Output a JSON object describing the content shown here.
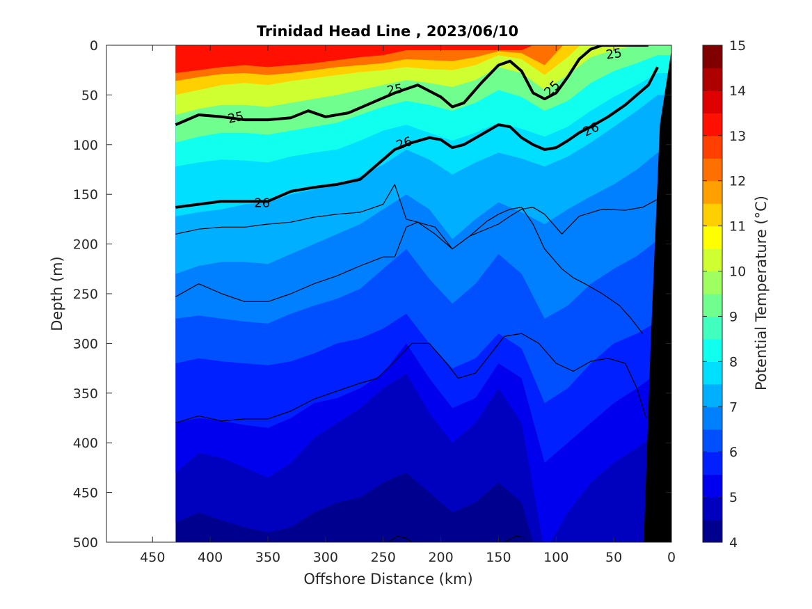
{
  "chart_data": {
    "type": "heatmap",
    "title": "Trinidad Head Line , 2023/06/10",
    "xlabel": "Offshore Distance (km)",
    "ylabel": "Depth (m)",
    "colorbar_label": "Potential Temperature (°C)",
    "xlim": [
      490,
      0
    ],
    "ylim": [
      500,
      0
    ],
    "xticks": [
      450,
      400,
      350,
      300,
      250,
      200,
      150,
      100,
      50,
      0
    ],
    "yticks": [
      0,
      50,
      100,
      150,
      200,
      250,
      300,
      350,
      400,
      450,
      500
    ],
    "colorbar_range": [
      4,
      15
    ],
    "colorbar_ticks": [
      4,
      5,
      6,
      7,
      8,
      9,
      10,
      11,
      12,
      13,
      14,
      15
    ],
    "colormap": [
      "#00008f",
      "#0000bf",
      "#0000ef",
      "#0020ff",
      "#0050ff",
      "#0080ff",
      "#00afff",
      "#00dfff",
      "#10ffef",
      "#40ffbf",
      "#70ff8f",
      "#9fff60",
      "#cfff30",
      "#ffff00",
      "#ffcf00",
      "#ff9f00",
      "#ff7000",
      "#ff4000",
      "#ff1000",
      "#df0000",
      "#af0000",
      "#800000"
    ],
    "section_start_km": 430,
    "distance_km": [
      430,
      410,
      390,
      370,
      350,
      330,
      310,
      290,
      270,
      250,
      230,
      210,
      190,
      170,
      150,
      130,
      110,
      90,
      70,
      50,
      30,
      12
    ],
    "isotherm_depths_m": [
      {
        "temp_c": 14,
        "depth_m": [
          -10,
          -10,
          -10,
          -10,
          -10,
          -10,
          -10,
          -10,
          -10,
          -10,
          -10,
          -10,
          -10,
          -10,
          -10,
          -10,
          -10,
          -10,
          -10,
          -10,
          -10,
          -10
        ]
      },
      {
        "temp_c": 13,
        "depth_m": [
          28,
          25,
          22,
          20,
          22,
          20,
          18,
          15,
          12,
          10,
          5,
          5,
          5,
          5,
          5,
          5,
          -5,
          -10,
          -10,
          -10,
          -10,
          -10
        ]
      },
      {
        "temp_c": 12,
        "depth_m": [
          36,
          32,
          29,
          28,
          30,
          28,
          25,
          22,
          20,
          18,
          14,
          15,
          16,
          12,
          6,
          8,
          20,
          -5,
          -10,
          -10,
          -10,
          -10
        ]
      },
      {
        "temp_c": 11,
        "depth_m": [
          50,
          45,
          40,
          38,
          40,
          36,
          33,
          30,
          27,
          25,
          22,
          24,
          25,
          20,
          10,
          14,
          30,
          12,
          -10,
          -10,
          -10,
          -10
        ]
      },
      {
        "temp_c": 10,
        "depth_m": [
          70,
          64,
          60,
          60,
          62,
          58,
          54,
          50,
          45,
          40,
          35,
          38,
          42,
          35,
          22,
          28,
          45,
          30,
          12,
          5,
          0,
          -5
        ]
      },
      {
        "temp_c": 9,
        "depth_m": [
          98,
          92,
          88,
          88,
          90,
          86,
          82,
          78,
          70,
          62,
          56,
          60,
          66,
          58,
          45,
          52,
          66,
          56,
          38,
          26,
          18,
          10
        ]
      },
      {
        "temp_c": 8,
        "depth_m": [
          122,
          118,
          115,
          116,
          118,
          112,
          108,
          105,
          96,
          86,
          80,
          88,
          96,
          88,
          78,
          84,
          92,
          82,
          66,
          52,
          40,
          28
        ]
      },
      {
        "temp_c": 7.5,
        "depth_m": [
          172,
          168,
          165,
          160,
          158,
          150,
          145,
          140,
          132,
          120,
          105,
          115,
          130,
          118,
          108,
          114,
          122,
          112,
          98,
          82,
          66,
          50
        ]
      },
      {
        "temp_c": 7,
        "depth_m": [
          230,
          222,
          218,
          218,
          220,
          210,
          200,
          190,
          180,
          165,
          150,
          165,
          195,
          175,
          158,
          168,
          180,
          165,
          152,
          140,
          125,
          108
        ]
      },
      {
        "temp_c": 6.5,
        "depth_m": [
          275,
          272,
          275,
          278,
          280,
          270,
          262,
          255,
          245,
          225,
          205,
          235,
          260,
          240,
          210,
          230,
          275,
          262,
          240,
          225,
          212,
          196
        ]
      },
      {
        "temp_c": 6,
        "depth_m": [
          320,
          315,
          318,
          320,
          322,
          318,
          310,
          300,
          295,
          285,
          270,
          300,
          325,
          315,
          290,
          305,
          360,
          345,
          320,
          300,
          290,
          278
        ]
      },
      {
        "temp_c": 5.5,
        "depth_m": [
          380,
          375,
          378,
          382,
          385,
          375,
          360,
          355,
          345,
          330,
          300,
          335,
          365,
          355,
          320,
          335,
          420,
          400,
          380,
          360,
          345,
          330
        ]
      },
      {
        "temp_c": 5,
        "depth_m": [
          430,
          410,
          415,
          425,
          435,
          420,
          395,
          380,
          365,
          345,
          330,
          370,
          400,
          380,
          345,
          380,
          510,
          470,
          440,
          420,
          405,
          390
        ]
      },
      {
        "temp_c": 4.5,
        "depth_m": [
          480,
          470,
          478,
          485,
          490,
          485,
          470,
          460,
          455,
          440,
          430,
          450,
          470,
          460,
          440,
          460,
          540,
          540,
          530,
          520,
          510,
          505
        ]
      }
    ],
    "density_contours": [
      {
        "label": "25",
        "thick": true,
        "distance_km": [
          430,
          410,
          390,
          370,
          350,
          330,
          315,
          300,
          280,
          260,
          240,
          220,
          200,
          190,
          180,
          165,
          150,
          140,
          130,
          120,
          110,
          100,
          90,
          80,
          70,
          60,
          50,
          40,
          20
        ],
        "depth_m": [
          80,
          70,
          72,
          75,
          75,
          73,
          66,
          72,
          68,
          58,
          48,
          40,
          52,
          62,
          58,
          38,
          20,
          16,
          26,
          48,
          54,
          48,
          32,
          14,
          4,
          0,
          0,
          0,
          0
        ]
      },
      {
        "label": "26",
        "thick": true,
        "distance_km": [
          430,
          410,
          390,
          370,
          350,
          330,
          310,
          290,
          270,
          260,
          250,
          240,
          225,
          210,
          200,
          190,
          180,
          165,
          150,
          140,
          130,
          120,
          110,
          100,
          90,
          80,
          70,
          55,
          40,
          30,
          20,
          12
        ],
        "depth_m": [
          163,
          160,
          157,
          157,
          157,
          147,
          143,
          140,
          135,
          125,
          115,
          105,
          98,
          93,
          95,
          103,
          100,
          90,
          80,
          82,
          93,
          100,
          105,
          103,
          96,
          88,
          82,
          72,
          60,
          50,
          40,
          22
        ]
      },
      {
        "label": "",
        "thick": false,
        "distance_km": [
          430,
          410,
          390,
          370,
          350,
          330,
          310,
          290,
          270,
          250,
          240,
          230,
          220,
          205,
          190,
          175,
          150,
          140,
          130,
          120,
          110,
          95,
          80,
          60,
          40,
          25,
          12
        ],
        "depth_m": [
          190,
          185,
          183,
          183,
          180,
          178,
          173,
          170,
          168,
          160,
          140,
          175,
          178,
          183,
          205,
          192,
          180,
          172,
          165,
          163,
          170,
          190,
          172,
          165,
          166,
          163,
          155
        ]
      },
      {
        "label": "",
        "thick": false,
        "distance_km": [
          430,
          410,
          390,
          370,
          350,
          330,
          310,
          290,
          270,
          250,
          240,
          230,
          220,
          205,
          190,
          175,
          160,
          150,
          140,
          130,
          120,
          110,
          95,
          85,
          75,
          60,
          45,
          35,
          25
        ],
        "depth_m": [
          253,
          240,
          250,
          258,
          258,
          250,
          240,
          232,
          222,
          213,
          213,
          183,
          178,
          190,
          205,
          192,
          177,
          170,
          165,
          163,
          180,
          205,
          225,
          234,
          240,
          250,
          262,
          275,
          290
        ]
      },
      {
        "label": "",
        "thick": false,
        "distance_km": [
          430,
          410,
          390,
          370,
          350,
          330,
          310,
          290,
          270,
          255,
          240,
          225,
          210,
          195,
          185,
          170,
          155,
          145,
          130,
          115,
          100,
          85,
          70,
          55,
          40,
          30,
          22
        ],
        "depth_m": [
          380,
          373,
          378,
          376,
          376,
          368,
          356,
          348,
          340,
          335,
          318,
          300,
          300,
          320,
          335,
          330,
          308,
          293,
          290,
          300,
          320,
          328,
          318,
          315,
          320,
          345,
          375
        ]
      },
      {
        "label": "",
        "thick": false,
        "distance_km": [
          245,
          238,
          230,
          225
        ],
        "depth_m": [
          500,
          494,
          496,
          500
        ]
      },
      {
        "label": "",
        "thick": false,
        "distance_km": [
          145,
          135,
          128
        ],
        "depth_m": [
          500,
          494,
          495
        ]
      }
    ],
    "contour_label_positions": [
      {
        "text": "25",
        "distance_km": 378,
        "depth_m": 72,
        "angle": -12
      },
      {
        "text": "25",
        "distance_km": 240,
        "depth_m": 44,
        "angle": -10
      },
      {
        "text": "25",
        "distance_km": 104,
        "depth_m": 43,
        "angle": -45
      },
      {
        "text": "25",
        "distance_km": 50,
        "depth_m": 8,
        "angle": -8
      },
      {
        "text": "26",
        "distance_km": 355,
        "depth_m": 158,
        "angle": 0
      },
      {
        "text": "26",
        "distance_km": 232,
        "depth_m": 98,
        "angle": -18
      },
      {
        "text": "26",
        "distance_km": 70,
        "depth_m": 84,
        "angle": -25
      }
    ],
    "grid": false,
    "legend": "colorbar-right"
  }
}
